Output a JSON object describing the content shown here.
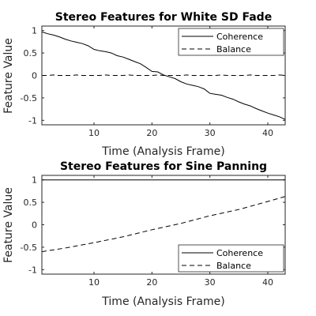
{
  "chart_data": [
    {
      "type": "line",
      "title": "Stereo Features for White SD Fade",
      "xlabel": "Time (Analysis Frame)",
      "ylabel": "Feature Value",
      "xlim": [
        1,
        43
      ],
      "ylim": [
        -1.1,
        1.1
      ],
      "xticks": [
        10,
        20,
        30,
        40
      ],
      "yticks": [
        -1,
        -0.5,
        0,
        0.5,
        1
      ],
      "ytick_labels": [
        "-1",
        "-0.5",
        "0",
        "0.5",
        "1"
      ],
      "legend_position": "top-right",
      "series": [
        {
          "name": "Coherence",
          "style": "solid",
          "x": [
            1,
            2,
            3,
            4,
            5,
            6,
            7,
            8,
            9,
            10,
            11,
            12,
            13,
            14,
            15,
            16,
            17,
            18,
            19,
            20,
            21,
            22,
            23,
            24,
            25,
            26,
            27,
            28,
            29,
            30,
            31,
            32,
            33,
            34,
            35,
            36,
            37,
            38,
            39,
            40,
            41,
            42,
            43
          ],
          "values": [
            0.97,
            0.93,
            0.9,
            0.86,
            0.81,
            0.77,
            0.74,
            0.71,
            0.66,
            0.58,
            0.55,
            0.53,
            0.5,
            0.44,
            0.41,
            0.36,
            0.31,
            0.26,
            0.18,
            0.09,
            0.08,
            0.01,
            -0.03,
            -0.07,
            -0.14,
            -0.19,
            -0.22,
            -0.25,
            -0.3,
            -0.4,
            -0.42,
            -0.44,
            -0.49,
            -0.53,
            -0.59,
            -0.64,
            -0.68,
            -0.74,
            -0.79,
            -0.84,
            -0.88,
            -0.92,
            -0.98
          ]
        },
        {
          "name": "Balance",
          "style": "dashed",
          "x": [
            1,
            2,
            3,
            4,
            5,
            6,
            7,
            8,
            9,
            10,
            11,
            12,
            13,
            14,
            15,
            16,
            17,
            18,
            19,
            20,
            21,
            22,
            23,
            24,
            25,
            26,
            27,
            28,
            29,
            30,
            31,
            32,
            33,
            34,
            35,
            36,
            37,
            38,
            39,
            40,
            41,
            42,
            43
          ],
          "values": [
            0,
            0,
            0.01,
            0,
            0,
            0,
            0.01,
            0,
            0,
            0,
            0,
            0.01,
            0,
            0,
            0,
            0.01,
            0,
            0,
            0,
            0,
            0.01,
            0,
            0,
            0,
            0,
            0.01,
            0,
            0,
            0,
            0,
            0,
            0.01,
            0,
            0,
            0,
            0,
            0.01,
            0,
            0,
            0,
            0,
            0.01,
            0
          ]
        }
      ]
    },
    {
      "type": "line",
      "title": "Stereo Features for Sine Panning",
      "xlabel": "Time (Analysis Frame)",
      "ylabel": "Feature Value",
      "xlim": [
        1,
        43
      ],
      "ylim": [
        -1.1,
        1.1
      ],
      "xticks": [
        10,
        20,
        30,
        40
      ],
      "yticks": [
        -1,
        -0.5,
        0,
        0.5,
        1
      ],
      "ytick_labels": [
        "-1",
        "-0.5",
        "0",
        "0.5",
        "1"
      ],
      "legend_position": "bottom-right",
      "series": [
        {
          "name": "Coherence",
          "style": "solid",
          "x": [
            1,
            43
          ],
          "values": [
            1,
            1
          ]
        },
        {
          "name": "Balance",
          "style": "dashed",
          "x": [
            1,
            5,
            10,
            15,
            20,
            25,
            30,
            35,
            40,
            43
          ],
          "values": [
            -0.6,
            -0.52,
            -0.4,
            -0.27,
            -0.11,
            0.03,
            0.2,
            0.34,
            0.52,
            0.63
          ]
        }
      ]
    }
  ]
}
